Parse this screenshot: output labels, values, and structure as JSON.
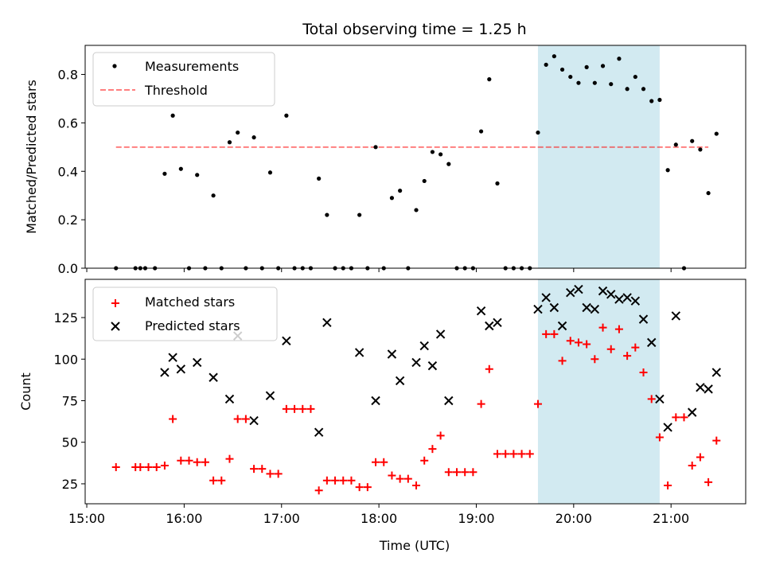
{
  "chart_data": {
    "type": "scatter",
    "title": "Total observing time = 1.25 h",
    "xlabel": "Time (UTC)",
    "x_ticks": [
      "15:00",
      "16:00",
      "17:00",
      "18:00",
      "19:00",
      "20:00",
      "21:00"
    ],
    "xlim": [
      "14:59",
      "21:46"
    ],
    "shaded_interval": [
      "19:38",
      "20:53"
    ],
    "shade_color": "#add8e6",
    "panels": [
      {
        "ylabel": "Matched/Predicted stars",
        "ylim": [
          0,
          0.92
        ],
        "y_ticks": [
          0.0,
          0.2,
          0.4,
          0.6,
          0.8
        ],
        "legend_position": "upper left",
        "threshold": {
          "name": "Threshold",
          "value": 0.5,
          "x_range": [
            "15:18",
            "21:23"
          ],
          "color": "#ff0000",
          "style": "dashed"
        },
        "series": [
          {
            "name": "Measurements",
            "marker": "dot",
            "color": "#000000",
            "points": [
              [
                "15:18",
                0
              ],
              [
                "15:30",
                0
              ],
              [
                "15:33",
                0
              ],
              [
                "15:36",
                0
              ],
              [
                "15:42",
                0
              ],
              [
                "15:48",
                0.39
              ],
              [
                "15:53",
                0.63
              ],
              [
                "15:58",
                0.41
              ],
              [
                "16:03",
                0
              ],
              [
                "16:08",
                0.385
              ],
              [
                "16:13",
                0
              ],
              [
                "16:18",
                0.3
              ],
              [
                "16:23",
                0
              ],
              [
                "16:28",
                0.52
              ],
              [
                "16:33",
                0.56
              ],
              [
                "16:38",
                0
              ],
              [
                "16:43",
                0.54
              ],
              [
                "16:48",
                0
              ],
              [
                "16:53",
                0.395
              ],
              [
                "16:58",
                0
              ],
              [
                "17:03",
                0.63
              ],
              [
                "17:08",
                0
              ],
              [
                "17:13",
                0
              ],
              [
                "17:18",
                0
              ],
              [
                "17:23",
                0.37
              ],
              [
                "17:28",
                0.22
              ],
              [
                "17:33",
                0
              ],
              [
                "17:38",
                0
              ],
              [
                "17:43",
                0
              ],
              [
                "17:48",
                0.22
              ],
              [
                "17:53",
                0
              ],
              [
                "17:58",
                0.5
              ],
              [
                "18:03",
                0
              ],
              [
                "18:08",
                0.29
              ],
              [
                "18:13",
                0.32
              ],
              [
                "18:18",
                0
              ],
              [
                "18:23",
                0.24
              ],
              [
                "18:28",
                0.36
              ],
              [
                "18:33",
                0.48
              ],
              [
                "18:38",
                0.47
              ],
              [
                "18:43",
                0.43
              ],
              [
                "18:48",
                0
              ],
              [
                "18:53",
                0
              ],
              [
                "18:58",
                0
              ],
              [
                "19:03",
                0.565
              ],
              [
                "19:08",
                0.78
              ],
              [
                "19:13",
                0.35
              ],
              [
                "19:18",
                0
              ],
              [
                "19:23",
                0
              ],
              [
                "19:28",
                0
              ],
              [
                "19:33",
                0
              ],
              [
                "19:38",
                0.56
              ],
              [
                "19:43",
                0.84
              ],
              [
                "19:48",
                0.875
              ],
              [
                "19:53",
                0.82
              ],
              [
                "19:58",
                0.79
              ],
              [
                "20:03",
                0.765
              ],
              [
                "20:08",
                0.83
              ],
              [
                "20:13",
                0.765
              ],
              [
                "20:18",
                0.835
              ],
              [
                "20:23",
                0.76
              ],
              [
                "20:28",
                0.865
              ],
              [
                "20:33",
                0.74
              ],
              [
                "20:38",
                0.79
              ],
              [
                "20:43",
                0.74
              ],
              [
                "20:48",
                0.69
              ],
              [
                "20:53",
                0.695
              ],
              [
                "20:58",
                0.405
              ],
              [
                "21:03",
                0.51
              ],
              [
                "21:08",
                0
              ],
              [
                "21:13",
                0.525
              ],
              [
                "21:18",
                0.49
              ],
              [
                "21:23",
                0.31
              ],
              [
                "21:28",
                0.555
              ]
            ]
          }
        ]
      },
      {
        "ylabel": "Count",
        "ylim": [
          13,
          148
        ],
        "y_ticks": [
          25,
          50,
          75,
          100,
          125
        ],
        "legend_position": "upper left",
        "series": [
          {
            "name": "Matched stars",
            "marker": "plus",
            "color": "#ff0000",
            "points": [
              [
                "15:18",
                35
              ],
              [
                "15:30",
                35
              ],
              [
                "15:33",
                35
              ],
              [
                "15:38",
                35
              ],
              [
                "15:43",
                35
              ],
              [
                "15:48",
                36
              ],
              [
                "15:53",
                64
              ],
              [
                "15:58",
                39
              ],
              [
                "16:03",
                39
              ],
              [
                "16:08",
                38
              ],
              [
                "16:13",
                38
              ],
              [
                "16:18",
                27
              ],
              [
                "16:23",
                27
              ],
              [
                "16:28",
                40
              ],
              [
                "16:33",
                64
              ],
              [
                "16:38",
                64
              ],
              [
                "16:43",
                34
              ],
              [
                "16:48",
                34
              ],
              [
                "16:53",
                31
              ],
              [
                "16:58",
                31
              ],
              [
                "17:03",
                70
              ],
              [
                "17:08",
                70
              ],
              [
                "17:13",
                70
              ],
              [
                "17:18",
                70
              ],
              [
                "17:23",
                21
              ],
              [
                "17:28",
                27
              ],
              [
                "17:33",
                27
              ],
              [
                "17:38",
                27
              ],
              [
                "17:43",
                27
              ],
              [
                "17:48",
                23
              ],
              [
                "17:53",
                23
              ],
              [
                "17:58",
                38
              ],
              [
                "18:03",
                38
              ],
              [
                "18:08",
                30
              ],
              [
                "18:13",
                28
              ],
              [
                "18:18",
                28
              ],
              [
                "18:23",
                24
              ],
              [
                "18:28",
                39
              ],
              [
                "18:33",
                46
              ],
              [
                "18:38",
                54
              ],
              [
                "18:43",
                32
              ],
              [
                "18:48",
                32
              ],
              [
                "18:53",
                32
              ],
              [
                "18:58",
                32
              ],
              [
                "19:03",
                73
              ],
              [
                "19:08",
                94
              ],
              [
                "19:13",
                43
              ],
              [
                "19:18",
                43
              ],
              [
                "19:23",
                43
              ],
              [
                "19:28",
                43
              ],
              [
                "19:33",
                43
              ],
              [
                "19:38",
                73
              ],
              [
                "19:43",
                115
              ],
              [
                "19:48",
                115
              ],
              [
                "19:53",
                99
              ],
              [
                "19:58",
                111
              ],
              [
                "20:03",
                110
              ],
              [
                "20:08",
                109
              ],
              [
                "20:13",
                100
              ],
              [
                "20:18",
                119
              ],
              [
                "20:23",
                106
              ],
              [
                "20:28",
                118
              ],
              [
                "20:33",
                102
              ],
              [
                "20:38",
                107
              ],
              [
                "20:43",
                92
              ],
              [
                "20:48",
                76
              ],
              [
                "20:53",
                53
              ],
              [
                "20:58",
                24
              ],
              [
                "21:03",
                65
              ],
              [
                "21:08",
                65
              ],
              [
                "21:13",
                36
              ],
              [
                "21:18",
                41
              ],
              [
                "21:23",
                26
              ],
              [
                "21:28",
                51
              ]
            ]
          },
          {
            "name": "Predicted stars",
            "marker": "x",
            "color": "#000000",
            "points": [
              [
                "15:48",
                92
              ],
              [
                "15:53",
                101
              ],
              [
                "15:58",
                94
              ],
              [
                "16:08",
                98
              ],
              [
                "16:18",
                89
              ],
              [
                "16:28",
                76
              ],
              [
                "16:33",
                114
              ],
              [
                "16:43",
                63
              ],
              [
                "16:53",
                78
              ],
              [
                "17:03",
                111
              ],
              [
                "17:23",
                56
              ],
              [
                "17:28",
                122
              ],
              [
                "17:48",
                104
              ],
              [
                "17:58",
                75
              ],
              [
                "18:08",
                103
              ],
              [
                "18:13",
                87
              ],
              [
                "18:23",
                98
              ],
              [
                "18:28",
                108
              ],
              [
                "18:33",
                96
              ],
              [
                "18:38",
                115
              ],
              [
                "18:43",
                75
              ],
              [
                "19:03",
                129
              ],
              [
                "19:08",
                120
              ],
              [
                "19:13",
                122
              ],
              [
                "19:38",
                130
              ],
              [
                "19:43",
                137
              ],
              [
                "19:48",
                131
              ],
              [
                "19:53",
                120
              ],
              [
                "19:58",
                140
              ],
              [
                "20:03",
                142
              ],
              [
                "20:08",
                131
              ],
              [
                "20:13",
                130
              ],
              [
                "20:18",
                141
              ],
              [
                "20:23",
                139
              ],
              [
                "20:28",
                136
              ],
              [
                "20:33",
                137
              ],
              [
                "20:38",
                135
              ],
              [
                "20:43",
                124
              ],
              [
                "20:48",
                110
              ],
              [
                "20:53",
                76
              ],
              [
                "20:58",
                59
              ],
              [
                "21:03",
                126
              ],
              [
                "21:13",
                68
              ],
              [
                "21:18",
                83
              ],
              [
                "21:23",
                82
              ],
              [
                "21:28",
                92
              ]
            ]
          }
        ]
      }
    ]
  }
}
